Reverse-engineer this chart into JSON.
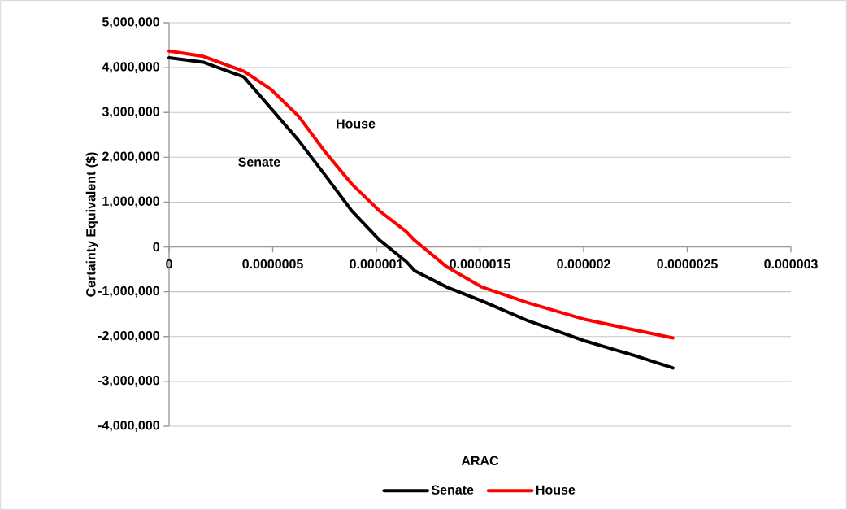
{
  "chart_data": {
    "type": "line",
    "xlabel": "ARAC",
    "ylabel": "Certainty Equivalent ($)",
    "series": [
      {
        "name": "Senate",
        "color": "#000000",
        "x": [
          0,
          1.65e-07,
          3.61e-07,
          4.9e-07,
          6.24e-07,
          7.53e-07,
          8.82e-07,
          1.016e-06,
          1.145e-06,
          1.184e-06,
          1.341e-06,
          1.506e-06,
          1.733e-06,
          2.008e-06,
          2.243e-06,
          2.431e-06
        ],
        "values": [
          4220000,
          4120000,
          3790000,
          3100000,
          2380000,
          1600000,
          800000,
          150000,
          -330000,
          -530000,
          -900000,
          -1200000,
          -1650000,
          -2100000,
          -2420000,
          -2700000
        ]
      },
      {
        "name": "House",
        "color": "#ff0000",
        "x": [
          0,
          1.65e-07,
          3.61e-07,
          4.9e-07,
          6.24e-07,
          7.53e-07,
          8.82e-07,
          1.016e-06,
          1.145e-06,
          1.184e-06,
          1.341e-06,
          1.506e-06,
          1.733e-06,
          2.008e-06,
          2.243e-06,
          2.431e-06
        ],
        "values": [
          4370000,
          4250000,
          3920000,
          3520000,
          2920000,
          2120000,
          1400000,
          800000,
          340000,
          150000,
          -450000,
          -890000,
          -1250000,
          -1620000,
          -1850000,
          -2030000
        ]
      }
    ],
    "xlim": [
      0,
      3e-06
    ],
    "xticks": [
      {
        "value": 0,
        "label": "0"
      },
      {
        "value": 5e-07,
        "label": "0.0000005"
      },
      {
        "value": 1e-06,
        "label": "0.000001"
      },
      {
        "value": 1.5e-06,
        "label": "0.0000015"
      },
      {
        "value": 2e-06,
        "label": "0.000002"
      },
      {
        "value": 2.5e-06,
        "label": "0.0000025"
      },
      {
        "value": 3e-06,
        "label": "0.000003"
      }
    ],
    "ylim": [
      -4000000,
      5000000
    ],
    "yticks": [
      {
        "value": -4000000,
        "label": "-4,000,000"
      },
      {
        "value": -3000000,
        "label": "-3,000,000"
      },
      {
        "value": -2000000,
        "label": "-2,000,000"
      },
      {
        "value": -1000000,
        "label": "-1,000,000"
      },
      {
        "value": 0,
        "label": "0"
      },
      {
        "value": 1000000,
        "label": "1,000,000"
      },
      {
        "value": 2000000,
        "label": "2,000,000"
      },
      {
        "value": 3000000,
        "label": "3,000,000"
      },
      {
        "value": 4000000,
        "label": "4,000,000"
      },
      {
        "value": 5000000,
        "label": "5,000,000"
      }
    ],
    "annotations": [
      "House",
      "Senate"
    ],
    "grid": "y",
    "legend": "bottom"
  }
}
